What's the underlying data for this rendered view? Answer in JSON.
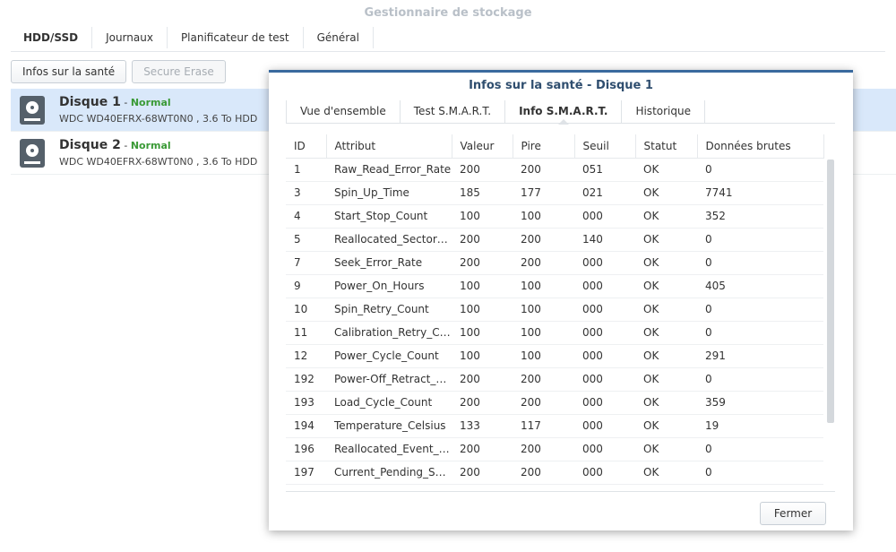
{
  "window": {
    "title": "Gestionnaire de stockage",
    "tabs": [
      "HDD/SSD",
      "Journaux",
      "Planificateur de test",
      "Général"
    ]
  },
  "toolbar": {
    "health_info_label": "Infos sur la santé",
    "secure_erase_label": "Secure Erase"
  },
  "disks": [
    {
      "name": "Disque 1",
      "separator": " - ",
      "status": "Normal",
      "model": "WDC WD40EFRX-68WT0N0 , 3.6 To HDD"
    },
    {
      "name": "Disque 2",
      "separator": " - ",
      "status": "Normal",
      "model": "WDC WD40EFRX-68WT0N0 , 3.6 To HDD"
    }
  ],
  "dialog": {
    "title": "Infos sur la santé - Disque 1",
    "tabs": [
      "Vue d'ensemble",
      "Test S.M.A.R.T.",
      "Info S.M.A.R.T.",
      "Historique"
    ],
    "active_tab": "Info S.M.A.R.T.",
    "columns": [
      "ID",
      "Attribut",
      "Valeur",
      "Pire",
      "Seuil",
      "Statut",
      "Données brutes"
    ],
    "rows": [
      [
        "1",
        "Raw_Read_Error_Rate",
        "200",
        "200",
        "051",
        "OK",
        "0"
      ],
      [
        "3",
        "Spin_Up_Time",
        "185",
        "177",
        "021",
        "OK",
        "7741"
      ],
      [
        "4",
        "Start_Stop_Count",
        "100",
        "100",
        "000",
        "OK",
        "352"
      ],
      [
        "5",
        "Reallocated_Sector_Ct",
        "200",
        "200",
        "140",
        "OK",
        "0"
      ],
      [
        "7",
        "Seek_Error_Rate",
        "200",
        "200",
        "000",
        "OK",
        "0"
      ],
      [
        "9",
        "Power_On_Hours",
        "100",
        "100",
        "000",
        "OK",
        "405"
      ],
      [
        "10",
        "Spin_Retry_Count",
        "100",
        "100",
        "000",
        "OK",
        "0"
      ],
      [
        "11",
        "Calibration_Retry_Count",
        "100",
        "100",
        "000",
        "OK",
        "0"
      ],
      [
        "12",
        "Power_Cycle_Count",
        "100",
        "100",
        "000",
        "OK",
        "291"
      ],
      [
        "192",
        "Power-Off_Retract_Count",
        "200",
        "200",
        "000",
        "OK",
        "0"
      ],
      [
        "193",
        "Load_Cycle_Count",
        "200",
        "200",
        "000",
        "OK",
        "359"
      ],
      [
        "194",
        "Temperature_Celsius",
        "133",
        "117",
        "000",
        "OK",
        "19"
      ],
      [
        "196",
        "Reallocated_Event_Count",
        "200",
        "200",
        "000",
        "OK",
        "0"
      ],
      [
        "197",
        "Current_Pending_Sector",
        "200",
        "200",
        "000",
        "OK",
        "0"
      ]
    ],
    "close_label": "Fermer"
  }
}
